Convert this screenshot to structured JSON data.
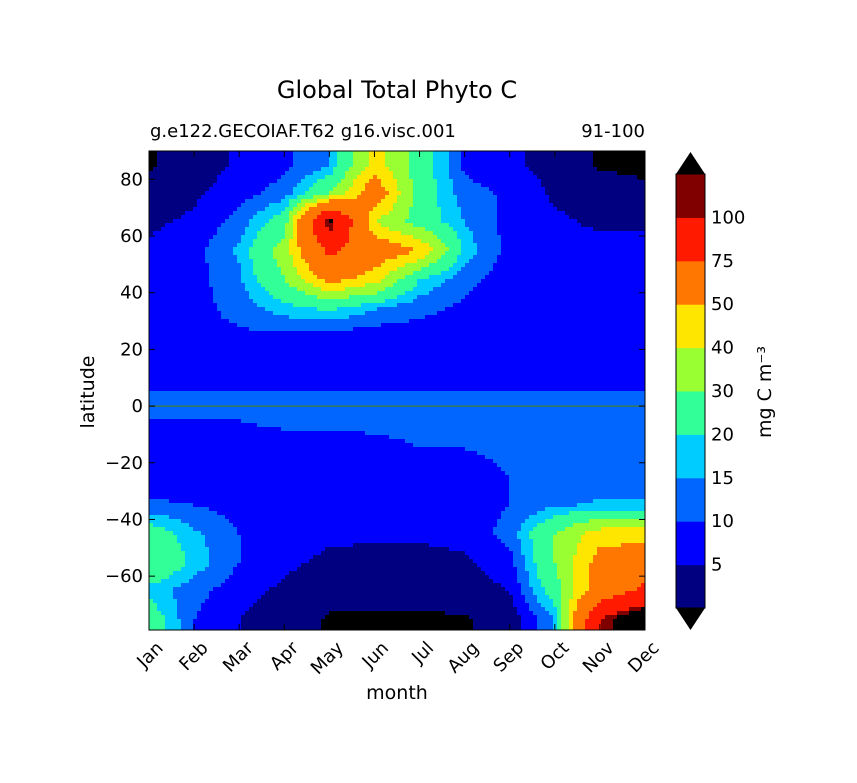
{
  "title": "Global Total Phyto C",
  "subtitle_left": "g.e122.GECOIAF.T62 g16.visc.001",
  "subtitle_right": "91-100",
  "chart_data": {
    "type": "heatmap",
    "title": "Global Total Phyto C",
    "xlabel": "month",
    "ylabel": "latitude",
    "x": [
      "Jan",
      "Feb",
      "Mar",
      "Apr",
      "May",
      "Jun",
      "Jul",
      "Aug",
      "Sep",
      "Oct",
      "Nov",
      "Dec"
    ],
    "yticks": [
      80,
      60,
      40,
      20,
      0,
      -20,
      -40,
      -60
    ],
    "ylim": [
      -79,
      90
    ],
    "colorbar": {
      "label": "mg C m⁻³",
      "levels": [
        5,
        10,
        15,
        20,
        30,
        40,
        50,
        75,
        100
      ],
      "colors": [
        "#000080",
        "#0000ff",
        "#0066ff",
        "#00ccff",
        "#33ff99",
        "#99ff33",
        "#ffe600",
        "#ff7700",
        "#ff1a00",
        "#800000"
      ],
      "extend": "both",
      "under_color": "#000000",
      "over_color": "#000000"
    },
    "y": [
      85,
      75,
      65,
      55,
      45,
      35,
      25,
      15,
      5,
      -5,
      -15,
      -25,
      -35,
      -45,
      -55,
      -65,
      -75
    ],
    "z": [
      [
        0.5,
        2.0,
        6.0,
        9.0,
        14.0,
        45.0,
        25.0,
        9.0,
        6.0,
        3.0,
        0.5,
        0.5
      ],
      [
        2.0,
        4.0,
        8.0,
        12.0,
        30.0,
        60.0,
        25.0,
        12.0,
        9.0,
        4.0,
        2.0,
        1.0
      ],
      [
        4.0,
        6.0,
        12.0,
        25.0,
        110.0,
        40.0,
        25.0,
        15.0,
        8.0,
        6.0,
        4.0,
        4.0
      ],
      [
        6.0,
        8.0,
        16.0,
        35.0,
        80.0,
        60.0,
        50.0,
        18.0,
        8.0,
        7.0,
        7.0,
        7.0
      ],
      [
        6.0,
        8.0,
        14.0,
        30.0,
        55.0,
        45.0,
        20.0,
        12.0,
        7.0,
        6.0,
        6.0,
        6.0
      ],
      [
        7.0,
        8.0,
        12.0,
        18.0,
        22.0,
        16.0,
        12.0,
        9.0,
        7.0,
        6.0,
        6.0,
        6.0
      ],
      [
        9.0,
        9.0,
        9.0,
        9.0,
        8.0,
        7.0,
        7.0,
        7.0,
        7.0,
        7.0,
        7.0,
        7.0
      ],
      [
        8.0,
        8.0,
        7.0,
        7.0,
        7.0,
        7.0,
        7.0,
        7.0,
        7.0,
        7.0,
        7.0,
        7.0
      ],
      [
        10.0,
        10.0,
        10.0,
        10.0,
        10.0,
        10.0,
        10.0,
        10.0,
        10.0,
        10.0,
        10.0,
        10.0
      ],
      [
        10.0,
        10.0,
        10.0,
        11.0,
        11.0,
        11.0,
        11.0,
        10.0,
        10.0,
        10.0,
        10.0,
        11.0
      ],
      [
        7.0,
        7.0,
        8.0,
        8.0,
        8.0,
        9.0,
        10.0,
        10.0,
        11.0,
        11.0,
        11.0,
        11.0
      ],
      [
        7.0,
        7.0,
        7.0,
        7.0,
        7.0,
        7.0,
        7.0,
        8.0,
        10.0,
        11.0,
        11.0,
        11.0
      ],
      [
        11.0,
        10.0,
        8.0,
        7.0,
        7.0,
        6.0,
        6.0,
        7.0,
        10.0,
        14.0,
        16.0,
        16.0
      ],
      [
        25.0,
        16.0,
        10.0,
        7.0,
        6.0,
        6.0,
        6.0,
        7.0,
        12.0,
        30.0,
        45.0,
        45.0
      ],
      [
        30.0,
        18.0,
        10.0,
        6.0,
        4.0,
        3.0,
        3.0,
        4.0,
        8.0,
        30.0,
        55.0,
        60.0
      ],
      [
        18.0,
        12.0,
        7.0,
        4.0,
        2.0,
        2.0,
        2.0,
        3.0,
        5.0,
        25.0,
        60.0,
        80.0
      ],
      [
        25.0,
        10.0,
        5.0,
        2.0,
        0.5,
        0.2,
        0.2,
        0.5,
        2.0,
        15.0,
        100.0,
        120.0
      ]
    ]
  }
}
